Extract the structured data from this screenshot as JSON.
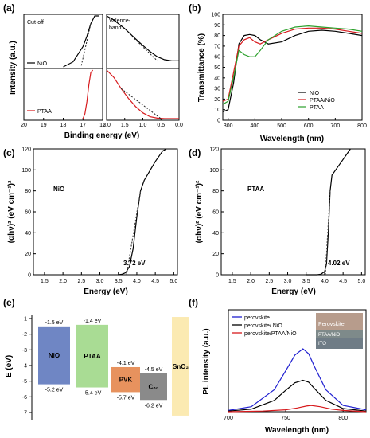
{
  "colors": {
    "nio": "#000000",
    "ptaa": "#d7191c",
    "ptaa_nio": "#d7191c",
    "green": "#2ca02c",
    "blue": "#1f1fd0",
    "arrow": "#222222"
  },
  "panels": {
    "a": {
      "label": "(a)",
      "ylabel": "Intensity (a.u.)",
      "xlabel": "Binding energy (eV)",
      "left_title": "Cut-off",
      "right_title": "Valence-\nband",
      "left_ticks": [
        "20",
        "19",
        "18",
        "17",
        "16"
      ],
      "right_ticks": [
        "2.0",
        "1.5",
        "1.0",
        "0.5",
        "0.0"
      ],
      "legend_top": "NiO",
      "legend_bottom": "PTAA"
    },
    "b": {
      "label": "(b)",
      "ylabel": "Transmittance (%)",
      "xlabel": "Wavelength (nm)",
      "xticks": [
        "300",
        "400",
        "500",
        "600",
        "700",
        "800"
      ],
      "yticks": [
        "0",
        "10",
        "20",
        "30",
        "40",
        "50",
        "60",
        "70",
        "80",
        "90",
        "100"
      ],
      "legend": [
        "NiO",
        "PTAA/NiO",
        "PTAA"
      ]
    },
    "c": {
      "label": "(c)",
      "ylabel": "(αhν)² (eV cm⁻¹)²",
      "xlabel": "Energy (eV)",
      "name": "NiO",
      "gap": "3.72 eV",
      "xticks": [
        "1.5",
        "2.0",
        "2.5",
        "3.0",
        "3.5",
        "4.0",
        "4.5",
        "5.0"
      ],
      "yticks": [
        "0",
        "20",
        "40",
        "60",
        "80",
        "100",
        "120"
      ]
    },
    "d": {
      "label": "(d)",
      "ylabel": "(αhν)² (eV cm⁻¹)²",
      "xlabel": "Energy (eV)",
      "name": "PTAA",
      "gap": "4.02 eV",
      "xticks": [
        "1.5",
        "2.0",
        "2.5",
        "3.0",
        "3.5",
        "4.0",
        "4.5",
        "5.0"
      ],
      "yticks": [
        "0",
        "20",
        "40",
        "60",
        "80",
        "100",
        "120"
      ]
    },
    "e": {
      "label": "(e)",
      "ylabel": "E (eV)",
      "yticks": [
        "-1",
        "-2",
        "-3",
        "-4",
        "-5",
        "-6",
        "-7"
      ],
      "layers": [
        {
          "name": "NiO",
          "top": "-1.5 eV",
          "bottom": "-5.2 eV",
          "top_val": -1.5,
          "bottom_val": -5.2,
          "color": "#6f86c4"
        },
        {
          "name": "PTAA",
          "top": "-1.4 eV",
          "bottom": "-5.4 eV",
          "top_val": -1.4,
          "bottom_val": -5.4,
          "color": "#a9dc94"
        },
        {
          "name": "PVK",
          "top": "-4.1 eV",
          "bottom": "-5.7 eV",
          "top_val": -4.1,
          "bottom_val": -5.7,
          "color": "#e7925e"
        },
        {
          "name": "C₆₀",
          "top": "-4.5 eV",
          "bottom": "-6.2 eV",
          "top_val": -4.5,
          "bottom_val": -6.2,
          "color": "#8a8a8a"
        },
        {
          "name": "SnO₂",
          "top": "",
          "bottom": "",
          "top_val": -0.9,
          "bottom_val": -7.2,
          "color": "#fbeab2"
        }
      ]
    },
    "f": {
      "label": "(f)",
      "ylabel": "PL intensity (a.u.)",
      "xlabel": "Wavelength (nm)",
      "xticks": [
        "700",
        "750",
        "800"
      ],
      "legend": [
        "perovskite",
        "perovskite/ NiO",
        "perovskite/PTAA/NiO"
      ],
      "inset": {
        "line1": "Perovskite",
        "line2": "PTAA/NiO",
        "line3": "ITO"
      }
    }
  },
  "chart_data": [
    {
      "panel": "a",
      "type": "line",
      "xlabel": "Binding energy (eV)",
      "ylabel": "Intensity (a.u.)",
      "series": [
        {
          "name": "NiO",
          "sub": "cutoff",
          "x": [
            18.0,
            17.5,
            17.0,
            16.8,
            16.6,
            16.4,
            16.2
          ],
          "y": [
            0.0,
            0.1,
            0.4,
            0.6,
            0.85,
            1.0,
            1.0
          ]
        },
        {
          "name": "PTAA",
          "sub": "cutoff",
          "x": [
            17.0,
            16.9,
            16.8,
            16.7,
            16.6,
            16.5
          ],
          "y": [
            0.0,
            0.1,
            0.35,
            0.7,
            0.95,
            1.0
          ]
        },
        {
          "name": "NiO",
          "sub": "valence",
          "x": [
            2.0,
            1.8,
            1.5,
            1.2,
            1.0,
            0.8,
            0.6,
            0.4,
            0.2,
            0.0
          ],
          "y": [
            1.0,
            0.92,
            0.75,
            0.55,
            0.42,
            0.3,
            0.2,
            0.14,
            0.12,
            0.12
          ]
        },
        {
          "name": "PTAA",
          "sub": "valence",
          "x": [
            2.0,
            1.8,
            1.6,
            1.4,
            1.2,
            1.0,
            0.8,
            0.6,
            0.4,
            0.2,
            0.0
          ],
          "y": [
            1.0,
            0.85,
            0.62,
            0.42,
            0.25,
            0.12,
            0.04,
            0.01,
            0.0,
            0.0,
            0.0
          ]
        }
      ]
    },
    {
      "panel": "b",
      "type": "line",
      "xlabel": "Wavelength (nm)",
      "ylabel": "Transmittance (%)",
      "xlim": [
        280,
        800
      ],
      "ylim": [
        0,
        100
      ],
      "series": [
        {
          "name": "NiO",
          "x": [
            280,
            300,
            320,
            340,
            360,
            380,
            400,
            420,
            450,
            500,
            550,
            600,
            650,
            700,
            750,
            800
          ],
          "y": [
            8,
            10,
            35,
            72,
            80,
            81,
            80,
            76,
            72,
            74,
            80,
            84,
            85,
            84,
            82,
            80
          ]
        },
        {
          "name": "PTAA/NiO",
          "x": [
            280,
            300,
            320,
            340,
            360,
            380,
            400,
            420,
            450,
            500,
            550,
            600,
            650,
            700,
            750,
            800
          ],
          "y": [
            18,
            20,
            45,
            70,
            76,
            78,
            74,
            72,
            76,
            82,
            86,
            87,
            87,
            86,
            84,
            82
          ]
        },
        {
          "name": "PTAA",
          "x": [
            280,
            300,
            320,
            340,
            360,
            380,
            400,
            420,
            450,
            500,
            550,
            600,
            650,
            700,
            750,
            800
          ],
          "y": [
            15,
            18,
            40,
            66,
            62,
            60,
            60,
            66,
            76,
            84,
            88,
            89,
            88,
            87,
            86,
            84
          ]
        }
      ]
    },
    {
      "panel": "c",
      "type": "line",
      "xlabel": "Energy (eV)",
      "ylabel": "(αhν)² (eV cm⁻¹)²",
      "xlim": [
        1.2,
        5.1
      ],
      "ylim": [
        0,
        120
      ],
      "series": [
        {
          "name": "NiO",
          "x": [
            3.5,
            3.6,
            3.7,
            3.8,
            3.9,
            4.0,
            4.1,
            4.2,
            4.3,
            4.4,
            4.5,
            4.6,
            4.7,
            4.8
          ],
          "y": [
            0,
            0.5,
            2,
            8,
            25,
            55,
            80,
            90,
            96,
            102,
            108,
            113,
            118,
            120
          ]
        }
      ],
      "tangent": {
        "x": [
          3.72,
          4.1
        ],
        "y": [
          0,
          80
        ]
      }
    },
    {
      "panel": "d",
      "type": "line",
      "xlabel": "Energy (eV)",
      "ylabel": "(αhν)² (eV cm⁻¹)²",
      "xlim": [
        1.2,
        5.1
      ],
      "ylim": [
        0,
        120
      ],
      "series": [
        {
          "name": "PTAA",
          "x": [
            3.5,
            3.8,
            3.9,
            4.0,
            4.05,
            4.1,
            4.15,
            4.2,
            4.3,
            4.4,
            4.5,
            4.6,
            4.7
          ],
          "y": [
            0,
            0,
            0.5,
            3,
            10,
            40,
            80,
            95,
            100,
            105,
            110,
            115,
            120
          ]
        }
      ],
      "tangent": {
        "x": [
          4.02,
          4.15
        ],
        "y": [
          0,
          80
        ]
      }
    },
    {
      "panel": "f",
      "type": "line",
      "xlabel": "Wavelength (nm)",
      "ylabel": "PL intensity (a.u.)",
      "xlim": [
        700,
        820
      ],
      "series": [
        {
          "name": "perovskite",
          "x": [
            700,
            720,
            740,
            750,
            758,
            765,
            770,
            775,
            785,
            800,
            820
          ],
          "y": [
            0.02,
            0.08,
            0.35,
            0.65,
            0.9,
            1.0,
            0.92,
            0.72,
            0.35,
            0.1,
            0.03
          ]
        },
        {
          "name": "perovskite/ NiO",
          "x": [
            700,
            720,
            740,
            750,
            758,
            765,
            770,
            775,
            785,
            800,
            820
          ],
          "y": [
            0.01,
            0.04,
            0.18,
            0.34,
            0.46,
            0.5,
            0.47,
            0.37,
            0.18,
            0.05,
            0.01
          ]
        },
        {
          "name": "perovskite/PTAA/NiO",
          "x": [
            700,
            730,
            750,
            760,
            768,
            772,
            780,
            790,
            800,
            820
          ],
          "y": [
            0.0,
            0.01,
            0.03,
            0.06,
            0.09,
            0.1,
            0.08,
            0.04,
            0.02,
            0.0
          ]
        }
      ]
    }
  ]
}
